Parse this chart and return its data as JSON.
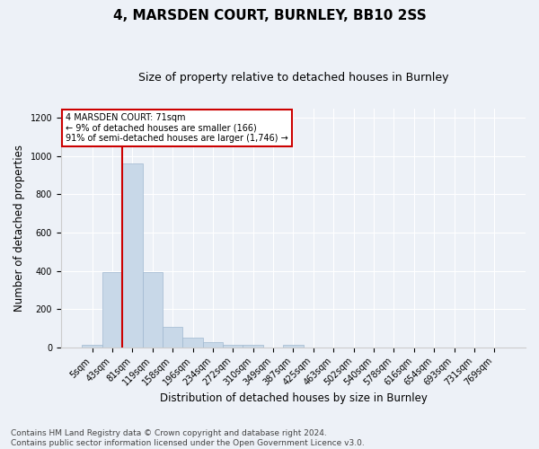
{
  "title1": "4, MARSDEN COURT, BURNLEY, BB10 2SS",
  "title2": "Size of property relative to detached houses in Burnley",
  "xlabel": "Distribution of detached houses by size in Burnley",
  "ylabel": "Number of detached properties",
  "categories": [
    "5sqm",
    "43sqm",
    "81sqm",
    "119sqm",
    "158sqm",
    "196sqm",
    "234sqm",
    "272sqm",
    "310sqm",
    "349sqm",
    "387sqm",
    "425sqm",
    "463sqm",
    "502sqm",
    "540sqm",
    "578sqm",
    "616sqm",
    "654sqm",
    "693sqm",
    "731sqm",
    "769sqm"
  ],
  "values": [
    15,
    395,
    960,
    395,
    105,
    52,
    25,
    15,
    13,
    0,
    15,
    0,
    0,
    0,
    0,
    0,
    0,
    0,
    0,
    0,
    0
  ],
  "bar_color": "#c8d8e8",
  "bar_edge_color": "#a0b8d0",
  "vline_x": 1.5,
  "vline_color": "#cc0000",
  "annotation_text": "4 MARSDEN COURT: 71sqm\n← 9% of detached houses are smaller (166)\n91% of semi-detached houses are larger (1,746) →",
  "annotation_box_color": "#ffffff",
  "annotation_box_edge": "#cc0000",
  "ylim": [
    0,
    1250
  ],
  "yticks": [
    0,
    200,
    400,
    600,
    800,
    1000,
    1200
  ],
  "bg_color": "#edf1f7",
  "plot_bg_color": "#edf1f7",
  "footnote": "Contains HM Land Registry data © Crown copyright and database right 2024.\nContains public sector information licensed under the Open Government Licence v3.0.",
  "title1_fontsize": 11,
  "title2_fontsize": 9,
  "xlabel_fontsize": 8.5,
  "ylabel_fontsize": 8.5,
  "tick_fontsize": 7,
  "footnote_fontsize": 6.5
}
